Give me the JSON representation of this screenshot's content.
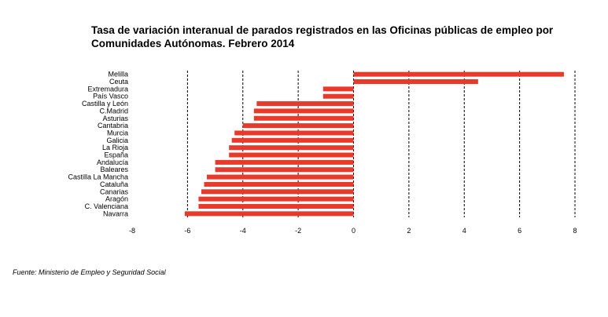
{
  "title_line1": "Tasa de variación interanual de parados registrados en las Oficinas públicas de empleo por",
  "title_line2": "Comunidades Autónomas.  Febrero 2014",
  "source": "Fuente: Ministerio de Empleo y Seguridad Social",
  "chart_data": {
    "type": "bar",
    "orientation": "horizontal",
    "categories": [
      "Melilla",
      "Ceuta",
      "Extremadura",
      "País Vasco",
      "Castilla y León",
      "C.Madrid",
      "Asturias",
      "Cantabria",
      "Murcia",
      "Galicia",
      "La Rioja",
      "España",
      "Andalucía",
      "Baleares",
      "Castilla La Mancha",
      "Cataluña",
      "Canarias",
      "Aragón",
      "C. Valenciana",
      "Navarra"
    ],
    "values": [
      7.6,
      4.5,
      -1.1,
      -1.1,
      -3.5,
      -3.6,
      -3.6,
      -4.0,
      -4.3,
      -4.4,
      -4.5,
      -4.5,
      -5.0,
      -5.0,
      -5.3,
      -5.4,
      -5.5,
      -5.6,
      -5.6,
      -6.1
    ],
    "xlim": [
      -8,
      8
    ],
    "xticks": [
      -8,
      -6,
      -4,
      -2,
      0,
      2,
      4,
      6,
      8
    ],
    "grid": "vertical dashed",
    "bar_color": "#e8392b"
  }
}
